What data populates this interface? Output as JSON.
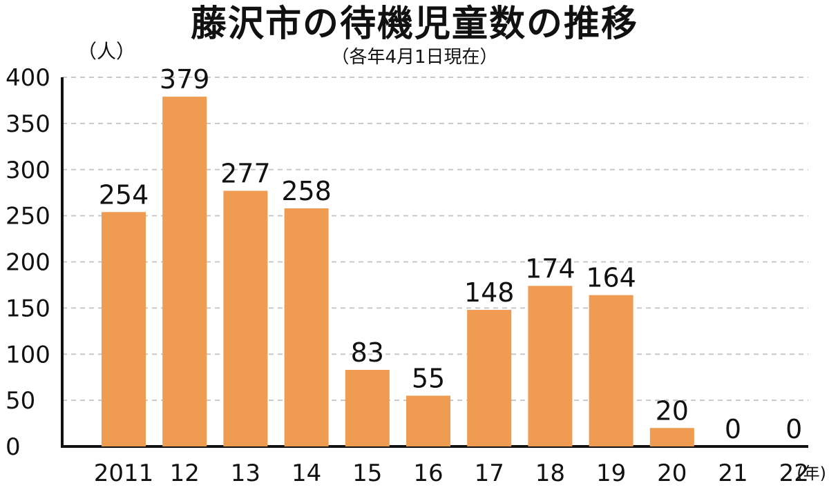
{
  "chart_data": {
    "type": "bar",
    "title": "藤沢市の待機児童数の推移",
    "subtitle": "（各年4月1日現在）",
    "ylabel": "（人）",
    "xunit": "(年)",
    "categories": [
      "2011",
      "12",
      "13",
      "14",
      "15",
      "16",
      "17",
      "18",
      "19",
      "20",
      "21",
      "22"
    ],
    "values": [
      254,
      379,
      277,
      258,
      83,
      55,
      148,
      174,
      164,
      20,
      0,
      0
    ],
    "ylim": [
      0,
      400
    ],
    "yticks": [
      "0",
      "50",
      "100",
      "150",
      "200",
      "250",
      "300",
      "350",
      "400"
    ],
    "grid": true,
    "bar_color": "#F09B52",
    "grid_color": "#C8C8C8"
  }
}
